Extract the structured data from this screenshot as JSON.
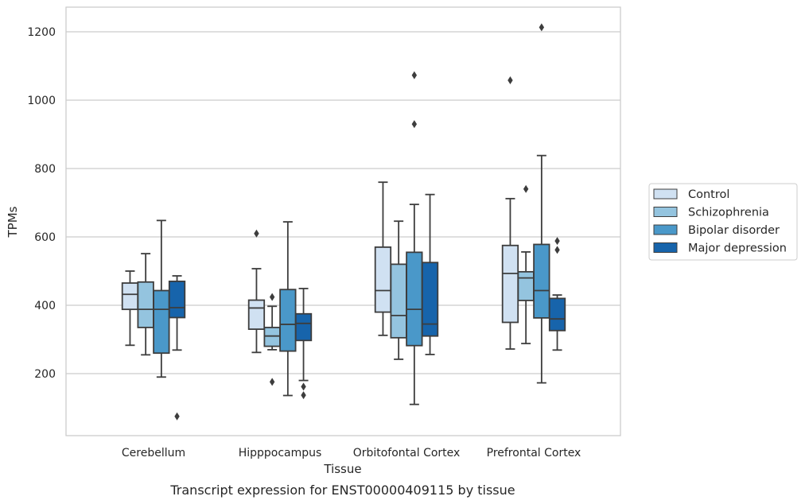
{
  "chart_data": {
    "type": "box",
    "caption": "Transcript expression for ENST00000409115 by tissue",
    "xlabel": "Tissue",
    "ylabel": "TPMs",
    "ylim": [
      20,
      1270
    ],
    "yticks": [
      200,
      400,
      600,
      800,
      1000,
      1200
    ],
    "grid": true,
    "legend_position": "right",
    "categories": [
      "Cerebellum",
      "Hipppocampus",
      "Orbitofontal Cortex",
      "Prefrontal Cortex"
    ],
    "series": [
      {
        "name": "Control",
        "color": "#d0e1f2",
        "boxes": [
          {
            "whisker_low": 283,
            "q1": 388,
            "median": 432,
            "q3": 465,
            "whisker_high": 500,
            "outliers": []
          },
          {
            "whisker_low": 262,
            "q1": 330,
            "median": 392,
            "q3": 415,
            "whisker_high": 507,
            "outliers": [
              610
            ]
          },
          {
            "whisker_low": 312,
            "q1": 380,
            "median": 443,
            "q3": 570,
            "whisker_high": 760,
            "outliers": []
          },
          {
            "whisker_low": 272,
            "q1": 350,
            "median": 493,
            "q3": 575,
            "whisker_high": 712,
            "outliers": [
              1058
            ]
          }
        ]
      },
      {
        "name": "Schizophrenia",
        "color": "#94c4df",
        "boxes": [
          {
            "whisker_low": 255,
            "q1": 335,
            "median": 388,
            "q3": 468,
            "whisker_high": 551,
            "outliers": []
          },
          {
            "whisker_low": 270,
            "q1": 280,
            "median": 310,
            "q3": 335,
            "whisker_high": 397,
            "outliers": [
              424,
              176
            ]
          },
          {
            "whisker_low": 242,
            "q1": 305,
            "median": 370,
            "q3": 520,
            "whisker_high": 646,
            "outliers": []
          },
          {
            "whisker_low": 288,
            "q1": 414,
            "median": 480,
            "q3": 498,
            "whisker_high": 556,
            "outliers": [
              740
            ]
          }
        ]
      },
      {
        "name": "Bipolar disorder",
        "color": "#4a98c9",
        "boxes": [
          {
            "whisker_low": 190,
            "q1": 260,
            "median": 388,
            "q3": 443,
            "whisker_high": 648,
            "outliers": []
          },
          {
            "whisker_low": 136,
            "q1": 266,
            "median": 344,
            "q3": 446,
            "whisker_high": 644,
            "outliers": []
          },
          {
            "whisker_low": 110,
            "q1": 282,
            "median": 388,
            "q3": 555,
            "whisker_high": 695,
            "outliers": [
              1073,
              930
            ]
          },
          {
            "whisker_low": 173,
            "q1": 363,
            "median": 443,
            "q3": 578,
            "whisker_high": 838,
            "outliers": [
              1213
            ]
          }
        ]
      },
      {
        "name": "Major depression",
        "color": "#1764ab",
        "boxes": [
          {
            "whisker_low": 269,
            "q1": 364,
            "median": 393,
            "q3": 470,
            "whisker_high": 486,
            "outliers": [
              75
            ]
          },
          {
            "whisker_low": 180,
            "q1": 297,
            "median": 347,
            "q3": 375,
            "whisker_high": 449,
            "outliers": [
              162,
              137
            ]
          },
          {
            "whisker_low": 256,
            "q1": 310,
            "median": 345,
            "q3": 525,
            "whisker_high": 724,
            "outliers": []
          },
          {
            "whisker_low": 269,
            "q1": 326,
            "median": 360,
            "q3": 420,
            "whisker_high": 430,
            "outliers": [
              588,
              562
            ]
          }
        ]
      }
    ]
  }
}
